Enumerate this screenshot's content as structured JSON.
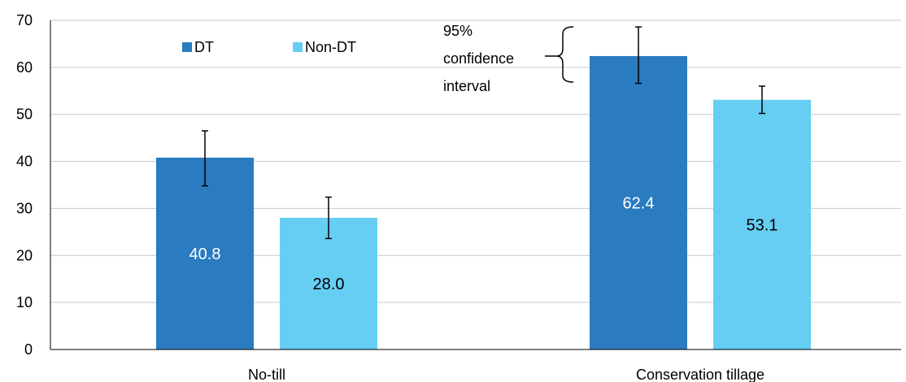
{
  "chart_data": {
    "type": "bar",
    "categories": [
      "No-till",
      "Conservation tillage"
    ],
    "series": [
      {
        "name": "DT",
        "color": "#2a7bbf",
        "label_color": "#ffffff",
        "values": [
          40.8,
          62.4
        ],
        "value_labels": [
          "40.8",
          "62.4"
        ],
        "ci_low": [
          34.8,
          56.6
        ],
        "ci_high": [
          46.5,
          68.6
        ]
      },
      {
        "name": "Non-DT",
        "color": "#66cdf3",
        "label_color": "#000000",
        "values": [
          28.0,
          53.1
        ],
        "value_labels": [
          "28.0",
          "53.1"
        ],
        "ci_low": [
          23.6,
          50.2
        ],
        "ci_high": [
          32.4,
          56.0
        ]
      }
    ],
    "ylim": [
      0,
      70
    ],
    "yticks": [
      0,
      10,
      20,
      30,
      40,
      50,
      60,
      70
    ],
    "grid": true,
    "legend_position": "top-left",
    "annotation": {
      "lines": [
        "95%",
        "confidence",
        "interval"
      ]
    }
  }
}
